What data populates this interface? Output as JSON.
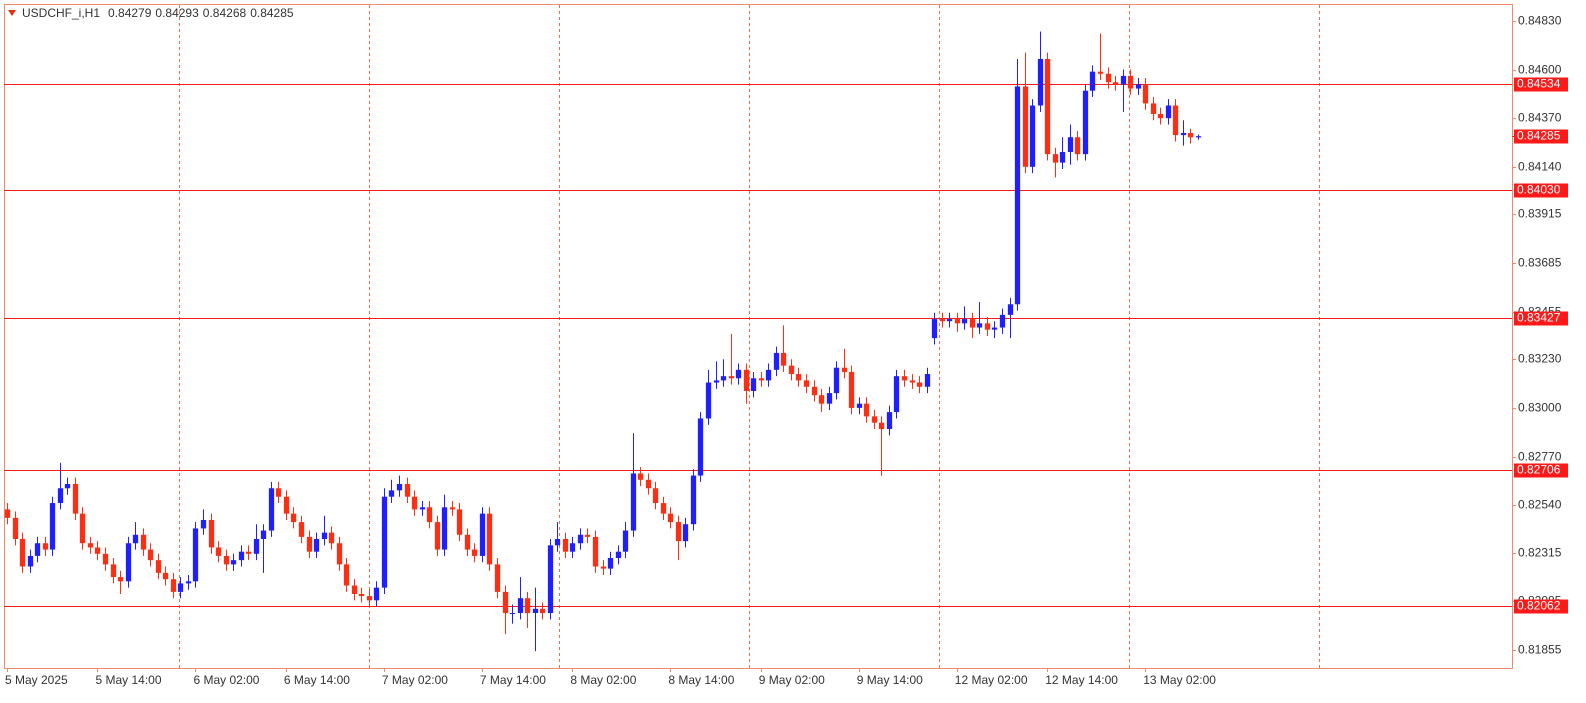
{
  "chart_data": {
    "type": "candlestick",
    "title": "USDCHF_i,H1",
    "categories": [
      "5 May 2025",
      null,
      null,
      null,
      null,
      null,
      null,
      null,
      null,
      null,
      null,
      null,
      "5 May 14:00",
      null,
      null,
      null,
      null,
      null,
      null,
      null,
      null,
      null,
      null,
      null,
      null,
      "6 May 02:00",
      null,
      null,
      null,
      null,
      null,
      null,
      null,
      null,
      null,
      null,
      null,
      "6 May 14:00",
      null,
      null,
      null,
      null,
      null,
      null,
      null,
      null,
      null,
      null,
      null,
      null,
      "7 May 02:00",
      null,
      null,
      null,
      null,
      null,
      null,
      null,
      null,
      null,
      null,
      null,
      null,
      "7 May 14:00",
      null,
      null,
      null,
      null,
      null,
      null,
      null,
      null,
      null,
      null,
      null,
      "8 May 02:00",
      null,
      null,
      null,
      null,
      null,
      null,
      null,
      null,
      null,
      null,
      null,
      null,
      "8 May 14:00",
      null,
      null,
      null,
      null,
      null,
      null,
      null,
      null,
      null,
      null,
      null,
      "9 May 02:00",
      null,
      null,
      null,
      null,
      null,
      null,
      null,
      null,
      null,
      null,
      null,
      null,
      "9 May 14:00",
      null,
      null,
      null,
      null,
      null,
      null,
      null,
      null,
      null,
      null,
      null,
      null,
      "12 May 02:00",
      null,
      null,
      null,
      null,
      null,
      null,
      null,
      null,
      null,
      null,
      null,
      "12 May 14:00",
      null,
      null,
      null,
      null,
      null,
      null,
      null,
      null,
      null,
      null,
      null,
      null,
      "13 May 02:00",
      null,
      null,
      null,
      null,
      null,
      null,
      null
    ],
    "open": [
      0.8252,
      0.8248,
      0.8238,
      0.8225,
      0.823,
      0.8236,
      0.8233,
      0.8255,
      0.8262,
      0.8264,
      0.825,
      0.8236,
      0.8234,
      0.8231,
      0.8226,
      0.822,
      0.8218,
      0.8236,
      0.824,
      0.8233,
      0.8228,
      0.8222,
      0.8219,
      0.8213,
      0.8217,
      0.8218,
      0.8243,
      0.8247,
      0.8234,
      0.823,
      0.8226,
      0.8228,
      0.8232,
      0.8231,
      0.8238,
      0.8242,
      0.8262,
      0.8258,
      0.825,
      0.8246,
      0.8239,
      0.8232,
      0.8238,
      0.8241,
      0.8236,
      0.8226,
      0.8216,
      0.8212,
      0.8211,
      0.8209,
      0.8215,
      0.8258,
      0.8261,
      0.8264,
      0.8258,
      0.8252,
      0.8253,
      0.8246,
      0.8233,
      0.8253,
      0.8252,
      0.824,
      0.8233,
      0.823,
      0.825,
      0.8226,
      0.8213,
      0.8203,
      0.8203,
      0.821,
      0.8203,
      0.8205,
      0.8203,
      0.8235,
      0.8238,
      0.8232,
      0.8236,
      0.824,
      0.8239,
      0.8225,
      0.8224,
      0.8229,
      0.8232,
      0.8242,
      0.8269,
      0.8266,
      0.8262,
      0.8255,
      0.825,
      0.8246,
      0.8237,
      0.8245,
      0.8268,
      0.8295,
      0.8312,
      0.8313,
      0.8315,
      0.8314,
      0.8318,
      0.8308,
      0.8314,
      0.8313,
      0.8318,
      0.8326,
      0.832,
      0.8316,
      0.8313,
      0.831,
      0.8306,
      0.8302,
      0.8307,
      0.8319,
      0.8317,
      0.83,
      0.8302,
      0.8296,
      0.8293,
      0.829,
      0.8298,
      0.8315,
      0.8313,
      0.8312,
      0.831,
      0.8333,
      0.8342,
      0.8341,
      0.8342,
      0.834,
      0.8342,
      0.8338,
      0.834,
      0.8337,
      0.8338,
      0.8344,
      0.8349,
      0.8452,
      0.8414,
      0.8443,
      0.8465,
      0.842,
      0.8416,
      0.8421,
      0.8428,
      0.842,
      0.845,
      0.8459,
      0.8458,
      0.8454,
      0.8453,
      0.8457,
      0.8451,
      0.8453,
      0.8444,
      0.8439,
      0.8437,
      0.8443,
      0.8429,
      0.843,
      0.84279
    ],
    "high": [
      0.8255,
      0.8251,
      0.8241,
      0.8233,
      0.8239,
      0.8239,
      0.8258,
      0.8274,
      0.8267,
      0.8267,
      0.8253,
      0.8239,
      0.8237,
      0.8234,
      0.8229,
      0.8223,
      0.8239,
      0.8246,
      0.8243,
      0.8236,
      0.8231,
      0.8225,
      0.8222,
      0.822,
      0.8221,
      0.8246,
      0.8252,
      0.825,
      0.8237,
      0.8233,
      0.8231,
      0.8235,
      0.8235,
      0.8245,
      0.8245,
      0.8265,
      0.8265,
      0.8261,
      0.8253,
      0.8249,
      0.8242,
      0.8241,
      0.8249,
      0.8244,
      0.8239,
      0.8229,
      0.8219,
      0.8215,
      0.8214,
      0.8218,
      0.8262,
      0.8266,
      0.8268,
      0.8267,
      0.8261,
      0.8256,
      0.8256,
      0.8249,
      0.8259,
      0.8256,
      0.8255,
      0.8243,
      0.8236,
      0.8253,
      0.8253,
      0.8229,
      0.8216,
      0.8207,
      0.822,
      0.8213,
      0.8215,
      0.8208,
      0.8238,
      0.8246,
      0.8241,
      0.8239,
      0.8243,
      0.8243,
      0.8242,
      0.8228,
      0.8232,
      0.8235,
      0.8246,
      0.8288,
      0.8272,
      0.8269,
      0.8265,
      0.8258,
      0.8253,
      0.8249,
      0.8248,
      0.8271,
      0.8298,
      0.8318,
      0.8322,
      0.8323,
      0.8335,
      0.8321,
      0.8321,
      0.8317,
      0.8317,
      0.8321,
      0.8329,
      0.8339,
      0.8323,
      0.8319,
      0.8316,
      0.8313,
      0.8309,
      0.831,
      0.8322,
      0.8328,
      0.832,
      0.8305,
      0.8305,
      0.8299,
      0.8296,
      0.8301,
      0.8318,
      0.8318,
      0.8316,
      0.8315,
      0.8319,
      0.8345,
      0.8345,
      0.8345,
      0.8345,
      0.8348,
      0.8345,
      0.835,
      0.8343,
      0.8341,
      0.8347,
      0.8352,
      0.8465,
      0.8468,
      0.8446,
      0.8478,
      0.8468,
      0.8423,
      0.8428,
      0.8434,
      0.8431,
      0.8453,
      0.8462,
      0.8477,
      0.8461,
      0.8457,
      0.846,
      0.846,
      0.8456,
      0.8456,
      0.8447,
      0.8442,
      0.8446,
      0.8446,
      0.8436,
      0.8432,
      0.84293
    ],
    "low": [
      0.8245,
      0.8235,
      0.8222,
      0.8222,
      0.8227,
      0.823,
      0.823,
      0.8252,
      0.8259,
      0.8247,
      0.8233,
      0.8231,
      0.8228,
      0.8223,
      0.8217,
      0.8212,
      0.8215,
      0.8233,
      0.823,
      0.8225,
      0.8219,
      0.8216,
      0.821,
      0.821,
      0.8214,
      0.8215,
      0.824,
      0.8231,
      0.8227,
      0.8223,
      0.8223,
      0.8225,
      0.8228,
      0.8228,
      0.8222,
      0.8239,
      0.8255,
      0.8247,
      0.8243,
      0.8236,
      0.8229,
      0.8229,
      0.8235,
      0.8233,
      0.8223,
      0.8213,
      0.8209,
      0.8208,
      0.8206,
      0.8206,
      0.8212,
      0.8255,
      0.8258,
      0.8255,
      0.8249,
      0.8249,
      0.8243,
      0.823,
      0.823,
      0.8249,
      0.8237,
      0.823,
      0.8227,
      0.8227,
      0.8223,
      0.821,
      0.8193,
      0.8198,
      0.82,
      0.8196,
      0.8185,
      0.82,
      0.82,
      0.8232,
      0.8229,
      0.8229,
      0.8233,
      0.8236,
      0.8222,
      0.8221,
      0.8221,
      0.8226,
      0.8229,
      0.8239,
      0.8263,
      0.8259,
      0.8252,
      0.8247,
      0.8243,
      0.8228,
      0.8234,
      0.8242,
      0.8265,
      0.8292,
      0.8309,
      0.831,
      0.8311,
      0.8311,
      0.8302,
      0.8305,
      0.831,
      0.831,
      0.8315,
      0.8317,
      0.8313,
      0.831,
      0.8307,
      0.8303,
      0.8298,
      0.8299,
      0.8304,
      0.8314,
      0.8297,
      0.8297,
      0.8293,
      0.829,
      0.8268,
      0.8287,
      0.8295,
      0.831,
      0.8309,
      0.8307,
      0.8307,
      0.833,
      0.8338,
      0.8338,
      0.8336,
      0.8337,
      0.8333,
      0.8335,
      0.8334,
      0.8333,
      0.8335,
      0.8333,
      0.8346,
      0.8411,
      0.8411,
      0.844,
      0.8417,
      0.8409,
      0.8413,
      0.8415,
      0.8417,
      0.8417,
      0.8447,
      0.8455,
      0.8451,
      0.845,
      0.844,
      0.8448,
      0.8448,
      0.8441,
      0.8436,
      0.8434,
      0.8434,
      0.8426,
      0.8424,
      0.8425,
      0.84268
    ],
    "close": [
      0.8248,
      0.8238,
      0.8225,
      0.823,
      0.8236,
      0.8233,
      0.8255,
      0.8262,
      0.8264,
      0.825,
      0.8236,
      0.8234,
      0.8231,
      0.8226,
      0.822,
      0.8218,
      0.8236,
      0.824,
      0.8233,
      0.8228,
      0.8222,
      0.8219,
      0.8213,
      0.8217,
      0.8218,
      0.8243,
      0.8247,
      0.8234,
      0.823,
      0.8226,
      0.8228,
      0.8232,
      0.8231,
      0.8238,
      0.8242,
      0.8262,
      0.8258,
      0.825,
      0.8246,
      0.8239,
      0.8232,
      0.8238,
      0.8241,
      0.8236,
      0.8226,
      0.8216,
      0.8212,
      0.8211,
      0.8209,
      0.8215,
      0.8258,
      0.8261,
      0.8264,
      0.8258,
      0.8252,
      0.8253,
      0.8246,
      0.8233,
      0.8253,
      0.8252,
      0.824,
      0.8233,
      0.823,
      0.825,
      0.8226,
      0.8213,
      0.8203,
      0.8203,
      0.821,
      0.8203,
      0.8205,
      0.8203,
      0.8235,
      0.8238,
      0.8232,
      0.8236,
      0.824,
      0.8239,
      0.8225,
      0.8224,
      0.8229,
      0.8232,
      0.8242,
      0.8269,
      0.8266,
      0.8262,
      0.8255,
      0.825,
      0.8246,
      0.8237,
      0.8245,
      0.8268,
      0.8295,
      0.8312,
      0.8313,
      0.8315,
      0.8314,
      0.8318,
      0.8308,
      0.8314,
      0.8313,
      0.8318,
      0.8326,
      0.832,
      0.8316,
      0.8313,
      0.831,
      0.8306,
      0.8302,
      0.8307,
      0.8319,
      0.8317,
      0.83,
      0.8302,
      0.8296,
      0.8293,
      0.829,
      0.8298,
      0.8315,
      0.8313,
      0.8312,
      0.831,
      0.8316,
      0.8342,
      0.8341,
      0.8342,
      0.834,
      0.8342,
      0.8338,
      0.834,
      0.8337,
      0.8338,
      0.8344,
      0.8349,
      0.8452,
      0.8414,
      0.8443,
      0.8465,
      0.842,
      0.8416,
      0.8421,
      0.8428,
      0.842,
      0.845,
      0.8459,
      0.8458,
      0.8454,
      0.8453,
      0.8457,
      0.8451,
      0.8453,
      0.8444,
      0.8439,
      0.8437,
      0.8443,
      0.8429,
      0.843,
      0.8428,
      0.84285
    ],
    "up_color": "#1f1fff",
    "down_color": "#ff2e12",
    "ylim": [
      0.8177,
      0.8491
    ],
    "yticks": [
      {
        "value": 0.8483,
        "label": "0.84830"
      },
      {
        "value": 0.846,
        "label": "0.84600"
      },
      {
        "value": 0.8437,
        "label": "0.84370"
      },
      {
        "value": 0.8414,
        "label": "0.84140"
      },
      0.83915,
      0.83685,
      0.83455,
      {
        "value": 0.8323,
        "label": "0.83230"
      },
      {
        "value": 0.83,
        "label": "0.83000"
      },
      {
        "value": 0.8277,
        "label": "0.82770"
      },
      {
        "value": 0.8254,
        "label": "0.82540"
      },
      0.82315,
      0.82085,
      0.81855
    ],
    "levels": [
      0.84534,
      {
        "value": 0.8403,
        "label": "0.84030"
      },
      0.83427,
      0.82706,
      0.82062
    ],
    "level_color": "#ff1a1a"
  }
}
